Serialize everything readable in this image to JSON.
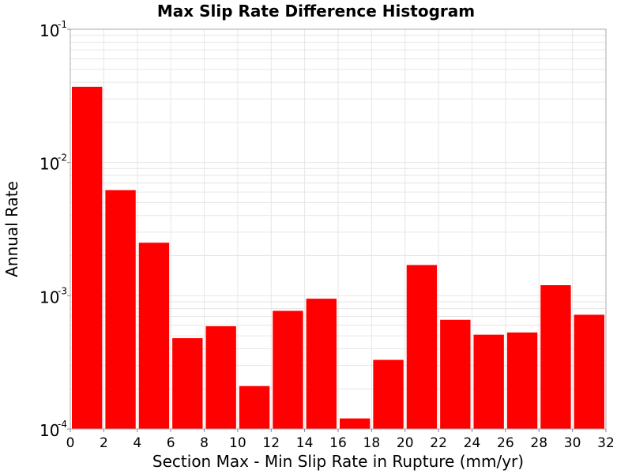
{
  "chart_data": {
    "type": "bar",
    "title": "Max Slip Rate Difference Histogram",
    "xlabel": "Section Max - Min Slip Rate in Rupture (mm/yr)",
    "ylabel": "Annual Rate",
    "xlim": [
      0,
      32
    ],
    "ylim": [
      0.0001,
      0.1
    ],
    "yscale": "log",
    "bin_width": 2,
    "x": [
      1,
      3,
      5,
      7,
      9,
      11,
      13,
      15,
      17,
      19,
      21,
      23,
      25,
      27,
      29,
      31
    ],
    "values": [
      0.037,
      0.0062,
      0.0025,
      0.00048,
      0.00059,
      0.00021,
      0.00077,
      0.00095,
      0.00012,
      0.00033,
      0.0017,
      0.00066,
      0.00051,
      0.00053,
      0.0012,
      0.00072
    ],
    "xticks": [
      "0",
      "2",
      "4",
      "6",
      "8",
      "10",
      "12",
      "14",
      "16",
      "18",
      "20",
      "22",
      "24",
      "26",
      "28",
      "30",
      "32"
    ],
    "yticks": [
      {
        "base": "10",
        "exp": "-1",
        "value": 0.1
      },
      {
        "base": "10",
        "exp": "-2",
        "value": 0.01
      },
      {
        "base": "10",
        "exp": "-3",
        "value": 0.001
      },
      {
        "base": "10",
        "exp": "-4",
        "value": 0.0001
      }
    ],
    "bar_color": "#ff0000",
    "grid": true,
    "grid_color": "#e6e6e6"
  }
}
